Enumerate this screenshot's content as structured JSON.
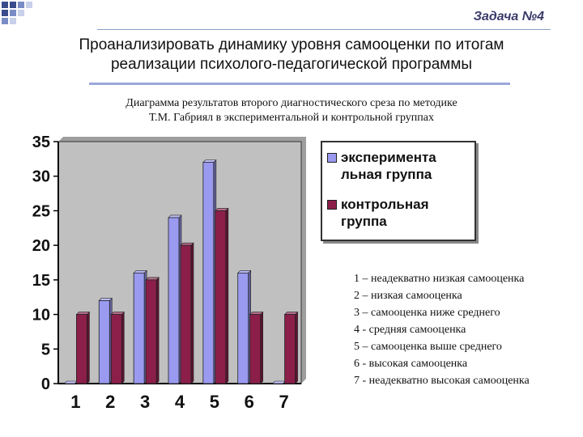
{
  "header": {
    "task_label": "Задача №4"
  },
  "title": {
    "line1": "Проанализировать динамику  уровня самооценки по итогам",
    "line2": "реализации психолого-педагогической программы"
  },
  "subtitle": {
    "line1": "Диаграмма результатов второго диагностического среза по методике",
    "line2": "Т.М. Габриял в экспериментальной и контрольной группах"
  },
  "colors": {
    "experimental": "#9a9af0",
    "control": "#8b1f4a",
    "plot_bg": "#c0c0c0"
  },
  "chart_data": {
    "type": "bar",
    "categories": [
      "1",
      "2",
      "3",
      "4",
      "5",
      "6",
      "7"
    ],
    "series": [
      {
        "name": "экспериментальная группа",
        "values": [
          0,
          12,
          16,
          24,
          32,
          16,
          0
        ]
      },
      {
        "name": "контрольная группа",
        "values": [
          10,
          10,
          15,
          20,
          25,
          10,
          10
        ]
      }
    ],
    "ylim": [
      0,
      35
    ],
    "yticks": [
      "0",
      "5",
      "10",
      "15",
      "20",
      "25",
      "30",
      "35"
    ],
    "grid": false,
    "legend": "top-right",
    "legend_labels": [
      {
        "line1": "эксперимента",
        "line2": "льная группа"
      },
      {
        "line1": "контрольная",
        "line2": "группа"
      }
    ]
  },
  "notes": [
    "1 – неадекватно низкая самооценка",
    "2 – низкая самооценка",
    "3 – самооценка ниже среднего",
    "4 - средняя самооценка",
    "5 – самооценка выше среднего",
    "6 -  высокая самооценка",
    "7 -  неадекватно высокая самооценка"
  ]
}
